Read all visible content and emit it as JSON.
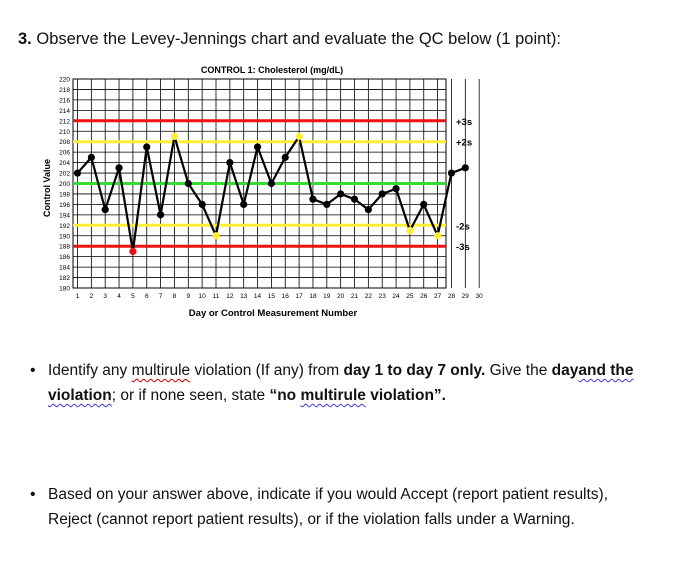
{
  "question": {
    "number": "3.",
    "text": "Observe the Levey-Jennings chart and evaluate the QC below (1 point):"
  },
  "bullets": [
    {
      "parts": [
        {
          "t": "Identify any ",
          "style": "plain"
        },
        {
          "t": "multirule",
          "style": "wavy"
        },
        {
          "t": " violation (If any) from ",
          "style": "plain"
        },
        {
          "t": "day 1 to day 7 only.",
          "style": "bold"
        },
        {
          "t": " Give the ",
          "style": "plain"
        },
        {
          "t": "day",
          "style": "bold"
        },
        {
          "t": "and the violation",
          "style": "boldwavy"
        },
        {
          "t": "; ",
          "style": "plain"
        },
        {
          "t": " or if none seen, state ",
          "style": "plain"
        },
        {
          "t": "“no ",
          "style": "bold"
        },
        {
          "t": "multirule",
          "style": "boldwavy"
        },
        {
          "t": " violation”.",
          "style": "bold"
        }
      ]
    },
    {
      "parts": [
        {
          "t": "Based on your answer above, indicate if you would Accept (report patient results), Reject (cannot report patient results), or if the violation falls under a Warning.",
          "style": "plain"
        }
      ]
    }
  ],
  "chart_data": {
    "type": "line",
    "title": "CONTROL 1: Cholesterol (mg/dL)",
    "xlabel": "Day or Control Measurement Number",
    "ylabel": "Control Value",
    "ylim": [
      180,
      220
    ],
    "xlim": [
      1,
      30
    ],
    "y_ticks": [
      180,
      182,
      184,
      186,
      188,
      190,
      192,
      194,
      196,
      198,
      200,
      202,
      204,
      206,
      208,
      210,
      212,
      214,
      216,
      218,
      220
    ],
    "x_ticks": [
      1,
      2,
      3,
      4,
      5,
      6,
      7,
      8,
      9,
      10,
      11,
      12,
      13,
      14,
      15,
      16,
      17,
      18,
      19,
      20,
      21,
      22,
      23,
      24,
      25,
      26,
      27,
      28,
      29,
      30
    ],
    "grid": true,
    "control_lines": [
      {
        "value": 212,
        "label": "+3s",
        "color": "#ee1111"
      },
      {
        "value": 208,
        "label": "+2s",
        "color": "#ffee33"
      },
      {
        "value": 200,
        "label": "",
        "color": "#33dd33"
      },
      {
        "value": 192,
        "label": "-2s",
        "color": "#ffee33"
      },
      {
        "value": 188,
        "label": "-3s",
        "color": "#ee1111"
      }
    ],
    "x": [
      1,
      2,
      3,
      4,
      5,
      6,
      7,
      8,
      9,
      10,
      11,
      12,
      13,
      14,
      15,
      16,
      17,
      18,
      19,
      20,
      21,
      22,
      23,
      24,
      25,
      26,
      27,
      28,
      29
    ],
    "values": [
      202,
      205,
      195,
      203,
      187,
      207,
      194,
      209,
      200,
      196,
      190,
      204,
      196,
      207,
      200,
      205,
      209,
      197,
      196,
      198,
      197,
      195,
      198,
      199,
      191,
      196,
      190,
      202,
      203
    ],
    "point_colors": [
      "#000",
      "#000",
      "#000",
      "#000",
      "#ee1111",
      "#000",
      "#000",
      "#ffee33",
      "#000",
      "#000",
      "#ffee33",
      "#000",
      "#000",
      "#000",
      "#000",
      "#000",
      "#ffee33",
      "#000",
      "#000",
      "#000",
      "#000",
      "#000",
      "#000",
      "#000",
      "#ffee33",
      "#000",
      "#ffee33",
      "#000",
      "#000"
    ],
    "line_color": "#000000"
  }
}
